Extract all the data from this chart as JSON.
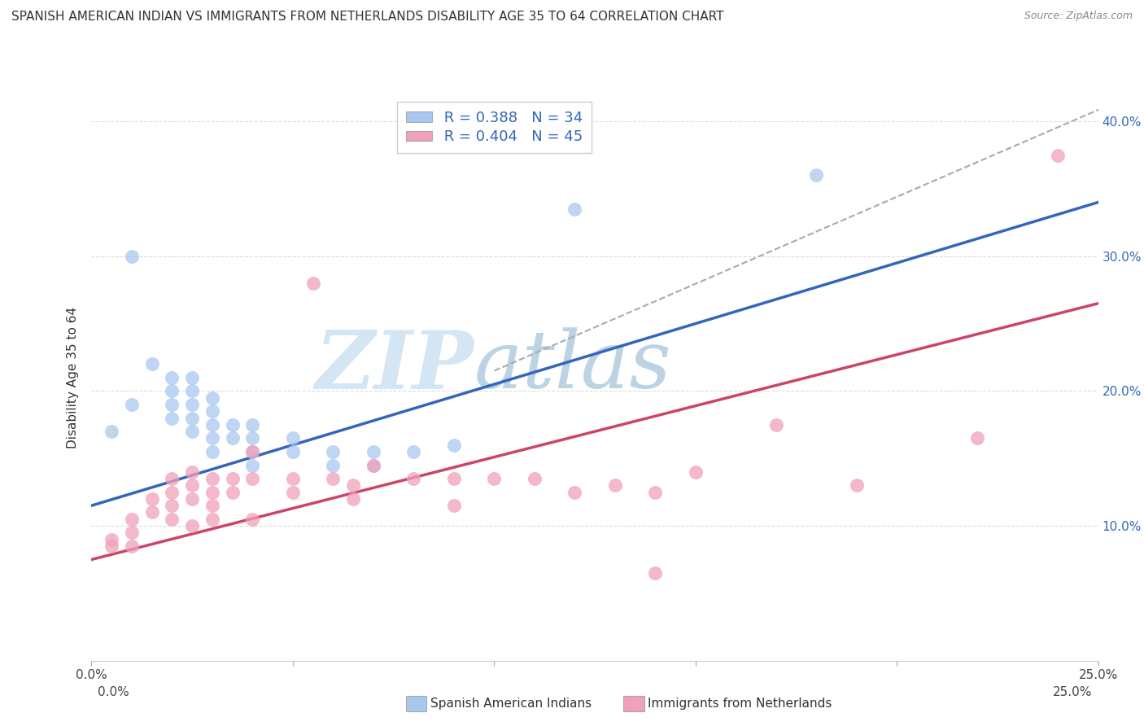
{
  "title": "SPANISH AMERICAN INDIAN VS IMMIGRANTS FROM NETHERLANDS DISABILITY AGE 35 TO 64 CORRELATION CHART",
  "source": "Source: ZipAtlas.com",
  "ylabel": "Disability Age 35 to 64",
  "xlabel_blue": "Spanish American Indians",
  "xlabel_pink": "Immigrants from Netherlands",
  "xlim": [
    0.0,
    0.25
  ],
  "ylim": [
    0.0,
    0.42
  ],
  "xticks": [
    0.0,
    0.05,
    0.1,
    0.15,
    0.2,
    0.25
  ],
  "xtick_labels": [
    "0.0%",
    "",
    "",
    "",
    "",
    "25.0%"
  ],
  "ytick_positions": [
    0.0,
    0.1,
    0.2,
    0.3,
    0.4
  ],
  "ytick_labels": [
    "",
    "10.0%",
    "20.0%",
    "30.0%",
    "40.0%"
  ],
  "R_blue": 0.388,
  "N_blue": 34,
  "R_pink": 0.404,
  "N_pink": 45,
  "blue_color": "#a8c8f0",
  "pink_color": "#f0a0b8",
  "trend_blue": "#3366bb",
  "trend_pink": "#cc4466",
  "trend_dashed_color": "#aaaaaa",
  "watermark_zip": "#b8d0e8",
  "watermark_atlas": "#7aA8c8",
  "blue_scatter_x": [
    0.005,
    0.01,
    0.01,
    0.015,
    0.02,
    0.02,
    0.02,
    0.02,
    0.025,
    0.025,
    0.025,
    0.025,
    0.025,
    0.03,
    0.03,
    0.03,
    0.03,
    0.03,
    0.035,
    0.035,
    0.04,
    0.04,
    0.04,
    0.04,
    0.05,
    0.05,
    0.06,
    0.06,
    0.07,
    0.07,
    0.08,
    0.09,
    0.12,
    0.18
  ],
  "blue_scatter_y": [
    0.17,
    0.3,
    0.19,
    0.22,
    0.21,
    0.2,
    0.19,
    0.18,
    0.21,
    0.2,
    0.19,
    0.18,
    0.17,
    0.195,
    0.185,
    0.175,
    0.165,
    0.155,
    0.175,
    0.165,
    0.175,
    0.165,
    0.155,
    0.145,
    0.165,
    0.155,
    0.155,
    0.145,
    0.155,
    0.145,
    0.155,
    0.16,
    0.335,
    0.36
  ],
  "pink_scatter_x": [
    0.005,
    0.005,
    0.01,
    0.01,
    0.01,
    0.015,
    0.015,
    0.02,
    0.02,
    0.02,
    0.02,
    0.025,
    0.025,
    0.025,
    0.025,
    0.03,
    0.03,
    0.03,
    0.03,
    0.035,
    0.035,
    0.04,
    0.04,
    0.04,
    0.05,
    0.05,
    0.055,
    0.06,
    0.065,
    0.065,
    0.07,
    0.08,
    0.09,
    0.09,
    0.1,
    0.11,
    0.12,
    0.13,
    0.14,
    0.14,
    0.15,
    0.17,
    0.19,
    0.22,
    0.24
  ],
  "pink_scatter_y": [
    0.09,
    0.085,
    0.105,
    0.095,
    0.085,
    0.12,
    0.11,
    0.135,
    0.125,
    0.115,
    0.105,
    0.14,
    0.13,
    0.12,
    0.1,
    0.135,
    0.125,
    0.115,
    0.105,
    0.135,
    0.125,
    0.155,
    0.135,
    0.105,
    0.135,
    0.125,
    0.28,
    0.135,
    0.13,
    0.12,
    0.145,
    0.135,
    0.135,
    0.115,
    0.135,
    0.135,
    0.125,
    0.13,
    0.125,
    0.065,
    0.14,
    0.175,
    0.13,
    0.165,
    0.375
  ],
  "blue_trend_x": [
    0.0,
    0.25
  ],
  "blue_trend_y": [
    0.115,
    0.34
  ],
  "pink_trend_x": [
    0.0,
    0.25
  ],
  "pink_trend_y": [
    0.075,
    0.265
  ],
  "dashed_trend_x": [
    0.1,
    0.255
  ],
  "dashed_trend_y": [
    0.215,
    0.415
  ],
  "grid_color": "#dddddd",
  "spine_color": "#cccccc",
  "bg_color": "#ffffff"
}
